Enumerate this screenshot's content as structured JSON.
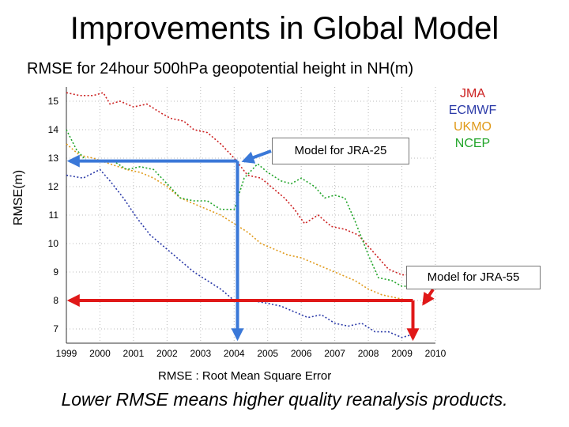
{
  "title": "Improvements in Global Model",
  "subtitle": "RMSE for 24hour 500hPa geopotential height in NH(m)",
  "footnote": "RMSE : Root Mean Square Error",
  "tagline": "Lower RMSE means higher quality reanalysis products.",
  "colors": {
    "JMA": "#cc2222",
    "ECMWF": "#2b3aa8",
    "UKMO": "#e09a1a",
    "NCEP": "#22a52a",
    "jra25_marker": "#3a78d8",
    "jra55_marker": "#e01818"
  },
  "chart_data": {
    "type": "line",
    "title": "RMSE for 24hour 500hPa geopotential height in NH(m)",
    "xlabel": "",
    "ylabel": "RMSE(m)",
    "xlim": [
      1999,
      2010
    ],
    "ylim": [
      6.5,
      15.5
    ],
    "xticks": [
      "1999",
      "2000",
      "2001",
      "2002",
      "2003",
      "2004",
      "2005",
      "2006",
      "2007",
      "2008",
      "2009",
      "2010"
    ],
    "yticks": [
      "7",
      "8",
      "9",
      "10",
      "11",
      "12",
      "13",
      "14",
      "15"
    ],
    "grid": true,
    "legend_position": "top-right",
    "series": [
      {
        "name": "JMA",
        "x": [
          1999.0,
          1999.4,
          1999.8,
          2000.1,
          2000.3,
          2000.6,
          2001.0,
          2001.4,
          2001.8,
          2002.1,
          2002.5,
          2002.8,
          2003.2,
          2003.6,
          2004.0,
          2004.4,
          2004.8,
          2005.1,
          2005.5,
          2005.8,
          2006.1,
          2006.5,
          2006.9,
          2007.3,
          2007.7,
          2008.0,
          2008.3,
          2008.6,
          2009.0,
          2009.3
        ],
        "y": [
          15.3,
          15.2,
          15.2,
          15.3,
          14.9,
          15.0,
          14.8,
          14.9,
          14.6,
          14.4,
          14.3,
          14.0,
          13.9,
          13.5,
          13.0,
          12.4,
          12.3,
          12.0,
          11.6,
          11.2,
          10.7,
          11.0,
          10.6,
          10.5,
          10.3,
          9.9,
          9.5,
          9.1,
          8.9,
          8.9
        ]
      },
      {
        "name": "ECMWF",
        "x": [
          1999.0,
          1999.5,
          2000.0,
          2000.3,
          2000.7,
          2001.1,
          2001.5,
          2002.0,
          2002.4,
          2002.8,
          2003.2,
          2003.6,
          2004.0,
          2004.5,
          2005.0,
          2005.4,
          2005.8,
          2006.2,
          2006.6,
          2007.0,
          2007.4,
          2007.8,
          2008.2,
          2008.6,
          2009.0,
          2009.3
        ],
        "y": [
          12.4,
          12.3,
          12.6,
          12.2,
          11.6,
          10.9,
          10.3,
          9.8,
          9.4,
          9.0,
          8.7,
          8.4,
          8.0,
          8.0,
          7.9,
          7.8,
          7.6,
          7.4,
          7.5,
          7.2,
          7.1,
          7.2,
          6.9,
          6.9,
          6.7,
          6.8
        ]
      },
      {
        "name": "UKMO",
        "x": [
          1999.0,
          1999.4,
          1999.8,
          2000.3,
          2000.8,
          2001.2,
          2001.6,
          2002.0,
          2002.4,
          2002.8,
          2003.2,
          2003.6,
          2004.0,
          2004.4,
          2004.8,
          2005.2,
          2005.6,
          2006.0,
          2006.4,
          2006.8,
          2007.2,
          2007.6,
          2008.0,
          2008.4,
          2008.8,
          2009.2
        ],
        "y": [
          13.5,
          13.1,
          13.0,
          12.8,
          12.6,
          12.5,
          12.3,
          12.0,
          11.6,
          11.4,
          11.2,
          11.0,
          10.7,
          10.4,
          10.0,
          9.8,
          9.6,
          9.5,
          9.3,
          9.1,
          8.9,
          8.7,
          8.4,
          8.2,
          8.1,
          8.0
        ]
      },
      {
        "name": "NCEP",
        "x": [
          1999.0,
          1999.3,
          1999.6,
          2000.0,
          2000.4,
          2000.8,
          2001.2,
          2001.6,
          2002.0,
          2002.4,
          2002.8,
          2003.2,
          2003.6,
          2004.0,
          2004.3,
          2004.7,
          2005.0,
          2005.4,
          2005.7,
          2006.0,
          2006.4,
          2006.7,
          2007.0,
          2007.3,
          2007.6,
          2008.0,
          2008.3,
          2008.7,
          2009.0,
          2009.3
        ],
        "y": [
          14.0,
          13.3,
          12.9,
          12.9,
          12.9,
          12.6,
          12.7,
          12.6,
          12.1,
          11.6,
          11.5,
          11.5,
          11.2,
          11.2,
          12.3,
          12.8,
          12.5,
          12.2,
          12.1,
          12.3,
          12.0,
          11.6,
          11.7,
          11.6,
          10.8,
          9.6,
          8.8,
          8.7,
          8.5,
          8.5
        ]
      }
    ],
    "annotations": [
      {
        "label": "Model for JRA-25",
        "x": 2004.1,
        "y": 12.9
      },
      {
        "label": "Model for JRA-55",
        "x": 2009.8,
        "y": 8.0
      }
    ]
  }
}
